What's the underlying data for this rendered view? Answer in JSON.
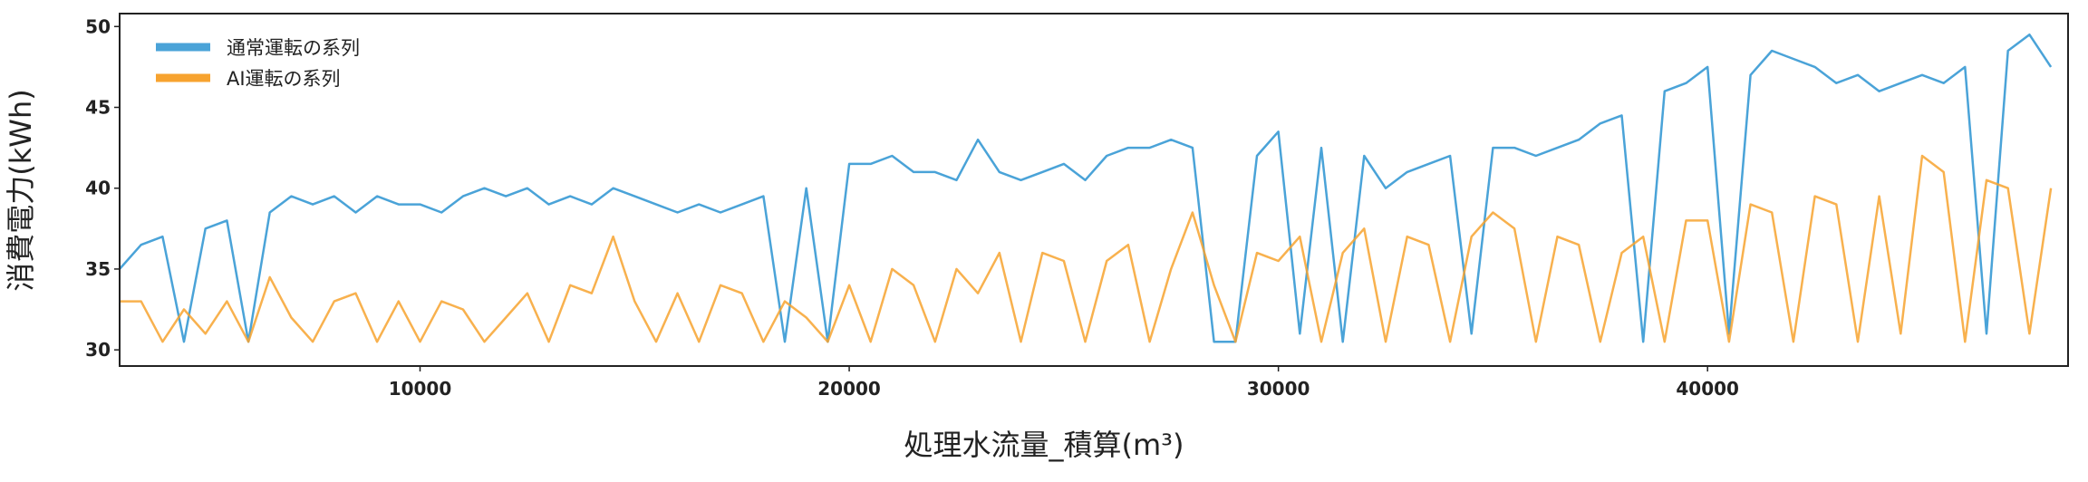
{
  "chart_data": {
    "type": "line",
    "x_label": "処理水流量_積算(m³)",
    "y_label": "消費電力(kWh)",
    "x": [
      3000,
      3500,
      4000,
      4500,
      5000,
      5500,
      6000,
      6500,
      7000,
      7500,
      8000,
      8500,
      9000,
      9500,
      10000,
      10500,
      11000,
      11500,
      12000,
      12500,
      13000,
      13500,
      14000,
      14500,
      15000,
      15500,
      16000,
      16500,
      17000,
      17500,
      18000,
      18500,
      19000,
      19500,
      20000,
      20500,
      21000,
      21500,
      22000,
      22500,
      23000,
      23500,
      24000,
      24500,
      25000,
      25500,
      26000,
      26500,
      27000,
      27500,
      28000,
      28500,
      29000,
      29500,
      30000,
      30500,
      31000,
      31500,
      32000,
      32500,
      33000,
      33500,
      34000,
      34500,
      35000,
      35500,
      36000,
      36500,
      37000,
      37500,
      38000,
      38500,
      39000,
      39500,
      40000,
      40500,
      41000,
      41500,
      42000,
      42500,
      43000,
      43500,
      44000,
      44500,
      45000,
      45500,
      46000,
      46500,
      47000,
      47500,
      48000
    ],
    "series": [
      {
        "name": "通常運転の系列",
        "color": "#4aa3d8",
        "values": [
          35,
          36.5,
          37,
          30.5,
          37.5,
          38,
          30.5,
          38.5,
          39.5,
          39,
          39.5,
          38.5,
          39.5,
          39,
          39,
          38.5,
          39.5,
          40,
          39.5,
          40,
          39,
          39.5,
          39,
          40,
          39.5,
          39,
          38.5,
          39,
          38.5,
          39,
          39.5,
          30.5,
          40,
          30.5,
          41.5,
          41.5,
          42,
          41,
          41,
          40.5,
          43,
          41,
          40.5,
          41,
          41.5,
          40.5,
          42,
          42.5,
          42.5,
          43,
          42.5,
          30.5,
          30.5,
          42,
          43.5,
          31,
          42.5,
          30.5,
          42,
          40,
          41,
          41.5,
          42,
          31,
          42.5,
          42.5,
          42,
          42.5,
          43,
          44,
          44.5,
          30.5,
          46,
          46.5,
          47.5,
          31,
          47,
          48.5,
          48,
          47.5,
          46.5,
          47,
          46,
          46.5,
          47,
          46.5,
          47.5,
          31,
          48.5,
          49.5,
          47.5
        ]
      },
      {
        "name": "AI運転の系列",
        "color": "#f7a32f",
        "values": [
          33,
          33,
          30.5,
          32.5,
          31,
          33,
          30.5,
          34.5,
          32,
          30.5,
          33,
          33.5,
          30.5,
          33,
          30.5,
          33,
          32.5,
          30.5,
          32,
          33.5,
          30.5,
          34,
          33.5,
          37,
          33,
          30.5,
          33.5,
          30.5,
          34,
          33.5,
          30.5,
          33,
          32,
          30.5,
          34,
          30.5,
          35,
          34,
          30.5,
          35,
          33.5,
          36,
          30.5,
          36,
          35.5,
          30.5,
          35.5,
          36.5,
          30.5,
          35,
          38.5,
          34,
          30.5,
          36,
          35.5,
          37,
          30.5,
          36,
          37.5,
          30.5,
          37,
          36.5,
          30.5,
          37,
          38.5,
          37.5,
          30.5,
          37,
          36.5,
          30.5,
          36,
          37,
          30.5,
          38,
          38,
          30.5,
          39,
          38.5,
          30.5,
          39.5,
          39,
          30.5,
          39.5,
          31,
          42,
          41,
          30.5,
          40.5,
          40,
          31,
          40
        ]
      }
    ],
    "xlim": [
      3000,
      48400
    ],
    "ylim": [
      29,
      50.8
    ],
    "xticks": [
      10000,
      20000,
      30000,
      40000
    ],
    "yticks": [
      30,
      35,
      40,
      45,
      50
    ],
    "legend": "upper left"
  }
}
